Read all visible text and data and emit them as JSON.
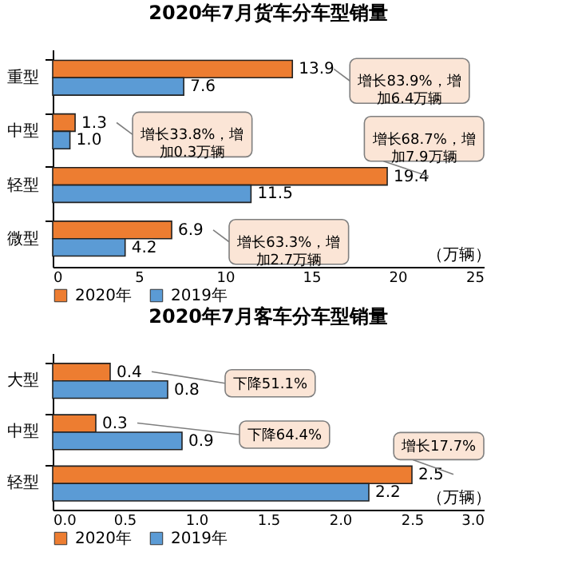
{
  "chart_data": [
    {
      "type": "bar",
      "orientation": "horizontal",
      "title": "2020年7月货车分车型销量",
      "xlabel": "（万辆）",
      "categories": [
        "重型",
        "中型",
        "轻型",
        "微型"
      ],
      "series": [
        {
          "name": "2020年",
          "color": "#ed7d31",
          "values": [
            13.9,
            1.3,
            19.4,
            6.9
          ],
          "value_labels": [
            "13.9",
            "1.3",
            "19.4",
            "6.9"
          ]
        },
        {
          "name": "2019年",
          "color": "#5b9bd5",
          "values": [
            7.6,
            1.0,
            11.5,
            4.2
          ],
          "value_labels": [
            "7.6",
            "1.0",
            "11.5",
            "4.2"
          ]
        }
      ],
      "xlim": [
        0,
        25
      ],
      "xticks": [
        0,
        5,
        10,
        15,
        20,
        25
      ],
      "legend": "bottom",
      "grid": false,
      "data_labels": true,
      "annotations": [
        "增长83.9%，增加6.4万辆",
        "增长33.8%，增加0.3万辆",
        "增长68.7%，增加7.9万辆",
        "增长63.3%，增加2.7万辆"
      ]
    },
    {
      "type": "bar",
      "orientation": "horizontal",
      "title": "2020年7月客车分车型销量",
      "xlabel": "（万辆）",
      "categories": [
        "大型",
        "中型",
        "轻型"
      ],
      "series": [
        {
          "name": "2020年",
          "color": "#ed7d31",
          "values": [
            0.4,
            0.3,
            2.5
          ],
          "value_labels": [
            "0.4",
            "0.3",
            "2.5"
          ]
        },
        {
          "name": "2019年",
          "color": "#5b9bd5",
          "values": [
            0.8,
            0.9,
            2.2
          ],
          "value_labels": [
            "0.8",
            "0.9",
            "2.2"
          ]
        }
      ],
      "xlim": [
        0,
        3
      ],
      "xticks": [
        {
          "value": 0,
          "label": "0.0"
        },
        {
          "value": 0.5,
          "label": "0.5"
        },
        {
          "value": 1,
          "label": "1.0"
        },
        {
          "value": 1.5,
          "label": "1.5"
        },
        {
          "value": 2,
          "label": "2.0"
        },
        {
          "value": 2.5,
          "label": "2.5"
        },
        {
          "value": 3,
          "label": "3.0"
        }
      ],
      "legend": "bottom",
      "grid": false,
      "data_labels": true,
      "annotations": [
        "下降51.1%",
        "下降64.4%",
        "增长17.7%"
      ]
    }
  ]
}
